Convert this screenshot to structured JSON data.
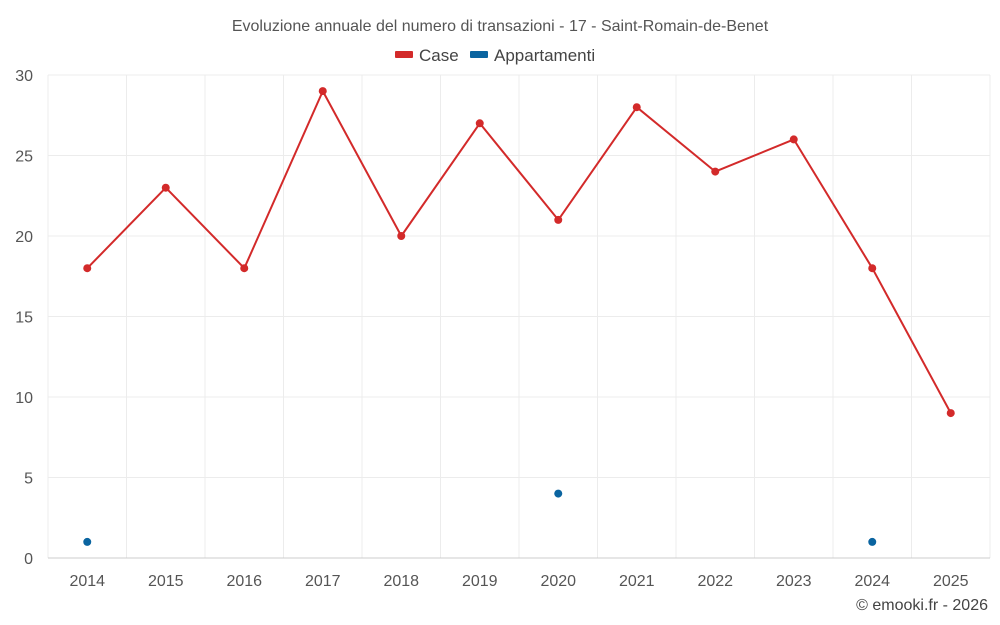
{
  "chart_data": {
    "type": "line",
    "title": "Evoluzione annuale del numero di transazioni - 17 - Saint-Romain-de-Benet",
    "categories": [
      "2014",
      "2015",
      "2016",
      "2017",
      "2018",
      "2019",
      "2020",
      "2021",
      "2022",
      "2023",
      "2024",
      "2025"
    ],
    "series": [
      {
        "name": "Case",
        "color": "#d32a2a",
        "line": true,
        "values": [
          18,
          23,
          18,
          29,
          20,
          27,
          21,
          28,
          24,
          26,
          18,
          9
        ]
      },
      {
        "name": "Appartamenti",
        "color": "#0a64a0",
        "line": false,
        "values": [
          1,
          null,
          null,
          null,
          null,
          null,
          4,
          null,
          null,
          null,
          1,
          null
        ]
      }
    ],
    "ylim": [
      0,
      30
    ],
    "yticks": [
      0,
      5,
      10,
      15,
      20,
      25,
      30
    ],
    "grid": true,
    "legend": "top-center",
    "xlabel": "",
    "ylabel": ""
  },
  "credit": "© emooki.fr - 2026"
}
